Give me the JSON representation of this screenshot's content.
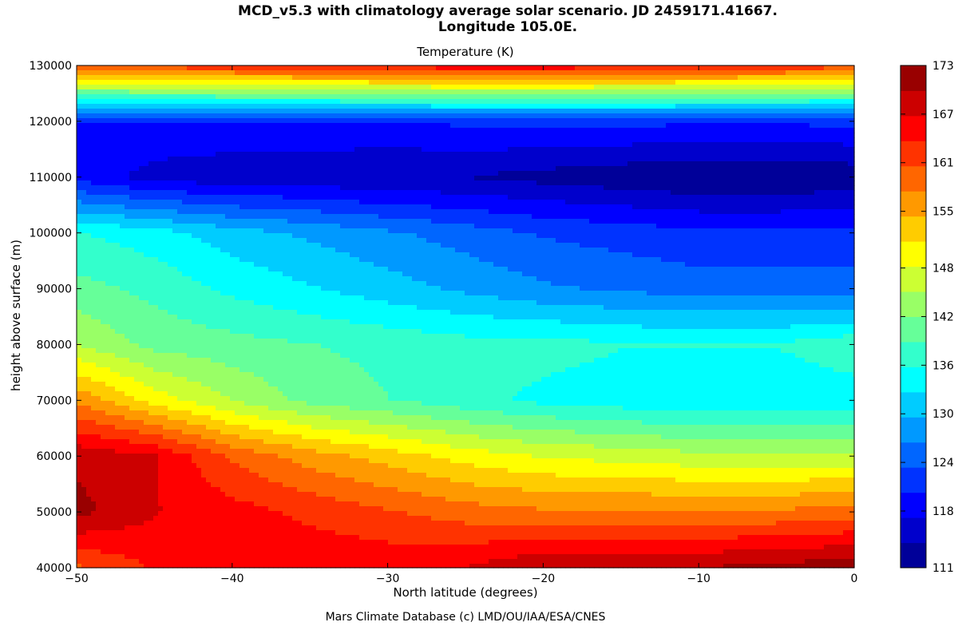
{
  "chart_data": {
    "type": "contour",
    "title_line1": "MCD_v5.3 with climatology average solar scenario. JD 2459171.41667.",
    "title_line2": "Longitude 105.0E.",
    "subtitle": "Temperature (K)",
    "xlabel": "North latitude (degrees)",
    "ylabel": "height above surface (m)",
    "footer": "Mars Climate Database (c) LMD/OU/IAA/ESA/CNES",
    "xlim": [
      -50,
      0
    ],
    "ylim": [
      40000,
      130000
    ],
    "x_ticks": [
      -50,
      -40,
      -30,
      -20,
      -10,
      0
    ],
    "x_tick_labels": [
      "−50",
      "−40",
      "−30",
      "−20",
      "−10",
      "0"
    ],
    "y_ticks": [
      40000,
      50000,
      60000,
      70000,
      80000,
      90000,
      100000,
      110000,
      120000,
      130000
    ],
    "y_tick_labels": [
      "40000",
      "50000",
      "60000",
      "70000",
      "80000",
      "90000",
      "100000",
      "110000",
      "120000",
      "130000"
    ],
    "colorbar": {
      "vmin": 111,
      "vmax": 173,
      "ticks": [
        111,
        118,
        124,
        130,
        136,
        142,
        148,
        155,
        161,
        167,
        173
      ],
      "tick_labels": [
        "111",
        "118",
        "124",
        "130",
        "136",
        "142",
        "148",
        "155",
        "161",
        "167",
        "173"
      ],
      "levels": 20
    },
    "latitudes": [
      -50,
      -45,
      -40,
      -35,
      -30,
      -25,
      -20,
      -15,
      -10,
      -5,
      0
    ],
    "heights": [
      40000,
      50000,
      60000,
      70000,
      80000,
      90000,
      100000,
      110000,
      120000,
      130000
    ],
    "temperature": [
      [
        160,
        164,
        165,
        166,
        166,
        167,
        170,
        170,
        170,
        171,
        172
      ],
      [
        171,
        167,
        165,
        163,
        161,
        159,
        158,
        158,
        158,
        158,
        159
      ],
      [
        169,
        167,
        160,
        156,
        153,
        150,
        148,
        147,
        146,
        146,
        146
      ],
      [
        157,
        150,
        145,
        141,
        139,
        137,
        135,
        134,
        133,
        133,
        134
      ],
      [
        145,
        141,
        140,
        139,
        138,
        137,
        137,
        136,
        136,
        136,
        138
      ],
      [
        140,
        138,
        135,
        133,
        131,
        129,
        127,
        126,
        125,
        125,
        125
      ],
      [
        136,
        134,
        131,
        129,
        127,
        125,
        123,
        122,
        121,
        121,
        121
      ],
      [
        119,
        116,
        115,
        115,
        114,
        114,
        113,
        112,
        111,
        111,
        112
      ],
      [
        120,
        120,
        120,
        120,
        120,
        121,
        121,
        121,
        121,
        121,
        121
      ],
      [
        161,
        162,
        163,
        164,
        165,
        166,
        166,
        165,
        164,
        163,
        162
      ]
    ]
  }
}
